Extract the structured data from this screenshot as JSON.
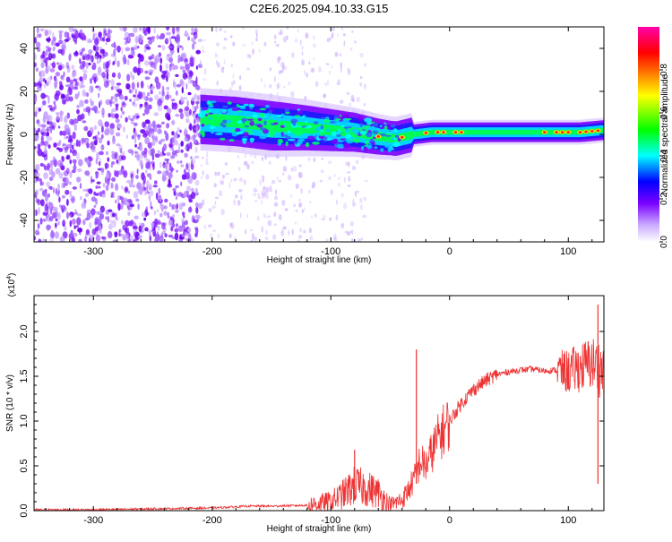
{
  "title": "C2E6.2025.094.10.33.G15",
  "chart_data": [
    {
      "type": "heatmap",
      "xlabel": "Height of straight line (km)",
      "ylabel": "Frequency (Hz)",
      "xlim": [
        -350,
        130
      ],
      "ylim": [
        -50,
        50
      ],
      "x_ticks": [
        -300,
        -200,
        -100,
        0,
        100
      ],
      "x_tick_labels": [
        "-300",
        "-200",
        "-100",
        "0",
        "100"
      ],
      "y_ticks": [
        -40,
        -20,
        0,
        20,
        40
      ],
      "y_tick_labels": [
        "-40",
        "-20",
        "0",
        "20",
        "40"
      ],
      "colorbar": {
        "label": "Normalized spectral amplitude",
        "range": [
          0,
          1
        ],
        "ticks": [
          0.0,
          0.2,
          0.4,
          0.6,
          0.8
        ],
        "tick_labels": [
          "0.0",
          "0.2",
          "0.4",
          "0.6",
          "0.8"
        ],
        "colors": [
          "#ffffff",
          "#b088ff",
          "#7a00ff",
          "#0000ff",
          "#00ffff",
          "#00ff00",
          "#ffff00",
          "#ff8000",
          "#ff0000",
          "#ff00aa"
        ]
      },
      "ridge": {
        "x": [
          -210,
          -180,
          -150,
          -120,
          -100,
          -80,
          -60,
          -45,
          -30,
          -15,
          0,
          20,
          50,
          80,
          110,
          130
        ],
        "frequency": [
          7,
          6,
          4,
          3,
          2,
          1,
          -1,
          -2,
          0,
          1,
          1,
          1,
          1,
          1,
          1,
          2
        ]
      },
      "noise_region": [
        -350,
        -210
      ],
      "signal_onset": -210
    },
    {
      "type": "line",
      "xlabel": "Height of straight line (km)",
      "ylabel": "SNR (10 * v/v)",
      "y_multiplier": "(x10",
      "y_multiplier_exp": "4",
      "xlim": [
        -350,
        130
      ],
      "ylim": [
        0,
        2.4
      ],
      "x_ticks": [
        -300,
        -200,
        -100,
        0,
        100
      ],
      "x_tick_labels": [
        "-300",
        "-200",
        "-100",
        "0",
        "100"
      ],
      "y_ticks": [
        0.0,
        0.5,
        1.0,
        1.5,
        2.0
      ],
      "y_tick_labels": [
        "0.0",
        "0.5",
        "1.0",
        "1.5",
        "2.0"
      ],
      "color": "#ee3333",
      "series": [
        {
          "x": [
            -350,
            -300,
            -250,
            -200,
            -170,
            -150,
            -120,
            -100,
            -90,
            -80,
            -70,
            -60,
            -50,
            -40,
            -35,
            -28,
            -25,
            -20,
            -15,
            -10,
            0,
            10,
            20,
            30,
            40,
            50,
            60,
            70,
            80,
            90,
            100,
            110,
            120,
            130
          ],
          "values": [
            0.01,
            0.01,
            0.02,
            0.03,
            0.05,
            0.05,
            0.06,
            0.1,
            0.18,
            0.28,
            0.25,
            0.2,
            0.06,
            0.12,
            0.22,
            0.4,
            0.55,
            0.5,
            0.65,
            0.8,
            1.0,
            1.2,
            1.35,
            1.45,
            1.52,
            1.55,
            1.57,
            1.58,
            1.56,
            1.57,
            1.55,
            1.6,
            1.65,
            1.55
          ]
        }
      ],
      "spikes": [
        {
          "x": -28,
          "y": 1.8
        },
        {
          "x": -80,
          "y": 0.68
        },
        {
          "x": 125,
          "y": 2.3
        }
      ]
    }
  ]
}
